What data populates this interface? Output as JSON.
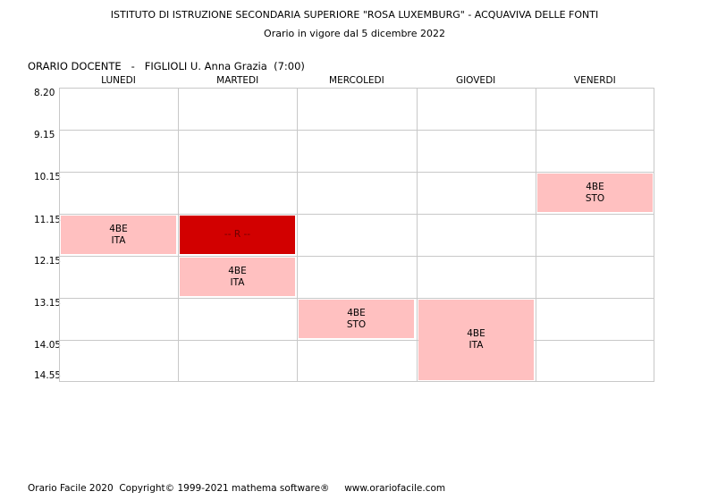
{
  "header": {
    "school": "ISTITUTO DI ISTRUZIONE SECONDARIA SUPERIORE \"ROSA LUXEMBURG\" - ACQUAVIVA DELLE FONTI",
    "validity": "Orario in vigore dal 5 dicembre 2022"
  },
  "teacher_line": "ORARIO DOCENTE   -   FIGLIOLI U. Anna Grazia  (7:00)",
  "days": [
    "LUNEDI",
    "MARTEDI",
    "MERCOLEDI",
    "GIOVEDI",
    "VENERDI"
  ],
  "times": [
    "8.20",
    "9.15",
    "10.15",
    "11.15",
    "12.15",
    "13.15",
    "14.05",
    "14.55"
  ],
  "lessons": [
    {
      "day": 0,
      "start_slot": 3,
      "slots": 1,
      "line1": "4BE",
      "line2": "ITA",
      "color": "#ffc0c0"
    },
    {
      "day": 1,
      "start_slot": 3,
      "slots": 1,
      "line1": "-- R --",
      "line2": "",
      "color": "#d20000"
    },
    {
      "day": 1,
      "start_slot": 4,
      "slots": 1,
      "line1": "4BE",
      "line2": "ITA",
      "color": "#ffc0c0"
    },
    {
      "day": 2,
      "start_slot": 5,
      "slots": 1,
      "line1": "4BE",
      "line2": "STO",
      "color": "#ffc0c0"
    },
    {
      "day": 3,
      "start_slot": 5,
      "slots": 2,
      "line1": "4BE",
      "line2": "ITA",
      "color": "#ffc0c0"
    },
    {
      "day": 4,
      "start_slot": 2,
      "slots": 1,
      "line1": "4BE",
      "line2": "STO",
      "color": "#ffc0c0"
    }
  ],
  "footer": "Orario Facile 2020  Copyright© 1999-2021 mathema software®     www.orariofacile.com"
}
